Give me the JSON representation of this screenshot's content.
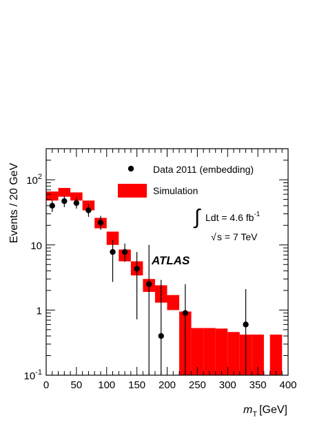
{
  "chart_data": {
    "type": "scatter",
    "xlabel_var": "m",
    "xlabel_sub": "T",
    "xlabel_unit": "[GeV]",
    "ylabel": "Events / 20 GeV",
    "xlim": [
      0,
      400
    ],
    "ylim": [
      0.1,
      300
    ],
    "yscale": "log",
    "x_ticks": [
      0,
      50,
      100,
      150,
      200,
      250,
      300,
      350,
      400
    ],
    "y_tick_labels": [
      {
        "base": "10",
        "exp": "-1",
        "value": 0.1
      },
      {
        "base": "1",
        "exp": "",
        "value": 1
      },
      {
        "base": "10",
        "exp": "",
        "value": 10
      },
      {
        "base": "10",
        "exp": "2",
        "value": 100
      }
    ],
    "legend_placement": "top-right",
    "legend": {
      "data": "Data 2011 (embedding)",
      "sim": "Simulation"
    },
    "lumi_text": "Ldt = 4.6 fb",
    "lumi_exp": "-1",
    "sqrt_s_text": "s = 7 TeV",
    "experiment_label": "ATLAS",
    "sim_color": "#ff0000",
    "data_color": "#000000",
    "simulation_band": [
      {
        "x0": 0,
        "x1": 20,
        "lo": 48,
        "hi": 66
      },
      {
        "x0": 20,
        "x1": 40,
        "lo": 55,
        "hi": 75
      },
      {
        "x0": 40,
        "x1": 60,
        "lo": 48,
        "hi": 64
      },
      {
        "x0": 60,
        "x1": 80,
        "lo": 34,
        "hi": 48
      },
      {
        "x0": 80,
        "x1": 100,
        "lo": 18,
        "hi": 26
      },
      {
        "x0": 100,
        "x1": 120,
        "lo": 10,
        "hi": 16
      },
      {
        "x0": 120,
        "x1": 140,
        "lo": 5.6,
        "hi": 8.5
      },
      {
        "x0": 140,
        "x1": 160,
        "lo": 3.4,
        "hi": 5.6
      },
      {
        "x0": 160,
        "x1": 180,
        "lo": 1.9,
        "hi": 3.0
      },
      {
        "x0": 180,
        "x1": 200,
        "lo": 1.3,
        "hi": 2.4
      },
      {
        "x0": 200,
        "x1": 220,
        "lo": 1.0,
        "hi": 1.7
      },
      {
        "x0": 220,
        "x1": 240,
        "lo": 0.1,
        "hi": 0.95
      },
      {
        "x0": 240,
        "x1": 260,
        "lo": 0.1,
        "hi": 0.53
      },
      {
        "x0": 260,
        "x1": 280,
        "lo": 0.1,
        "hi": 0.53
      },
      {
        "x0": 280,
        "x1": 300,
        "lo": 0.1,
        "hi": 0.52
      },
      {
        "x0": 300,
        "x1": 320,
        "lo": 0.1,
        "hi": 0.46
      },
      {
        "x0": 320,
        "x1": 340,
        "lo": 0.1,
        "hi": 0.42
      },
      {
        "x0": 340,
        "x1": 360,
        "lo": 0.1,
        "hi": 0.42
      },
      {
        "x0": 370,
        "x1": 390,
        "lo": 0.1,
        "hi": 0.42
      }
    ],
    "data_points": [
      {
        "x": 10,
        "y": 40,
        "lo": 32,
        "hi": 48
      },
      {
        "x": 30,
        "y": 47,
        "lo": 38,
        "hi": 56
      },
      {
        "x": 50,
        "y": 44,
        "lo": 36,
        "hi": 53
      },
      {
        "x": 70,
        "y": 34,
        "lo": 27,
        "hi": 42
      },
      {
        "x": 90,
        "y": 22,
        "lo": 17,
        "hi": 28
      },
      {
        "x": 110,
        "y": 7.8,
        "lo": 2.7,
        "hi": 12
      },
      {
        "x": 130,
        "y": 7.8,
        "lo": 5.5,
        "hi": 10.5
      },
      {
        "x": 150,
        "y": 4.3,
        "lo": 0.72,
        "hi": 7.8
      },
      {
        "x": 170,
        "y": 2.5,
        "lo": 0.1,
        "hi": 10
      },
      {
        "x": 190,
        "y": 0.4,
        "lo": 0.1,
        "hi": 2.9
      },
      {
        "x": 230,
        "y": 0.9,
        "lo": 0.1,
        "hi": 2.5
      },
      {
        "x": 330,
        "y": 0.6,
        "lo": 0.1,
        "hi": 2.1
      }
    ]
  }
}
